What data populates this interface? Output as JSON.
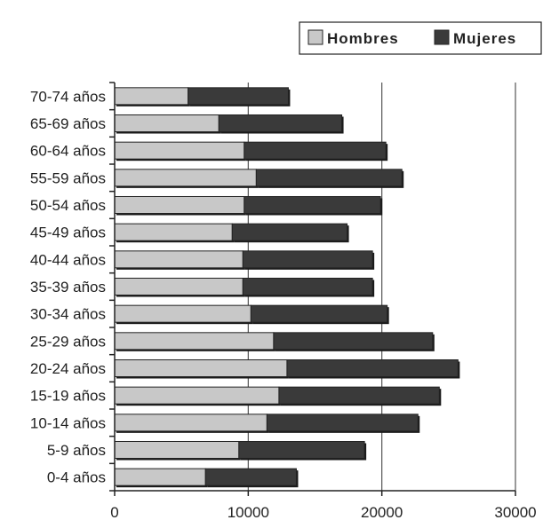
{
  "chart_data": {
    "type": "bar",
    "orientation": "horizontal",
    "stacked": true,
    "categories": [
      "0-4 años",
      "5-9 años",
      "10-14 años",
      "15-19 años",
      "20-24 años",
      "25-29 años",
      "30-34 años",
      "35-39 años",
      "40-44 años",
      "45-49 años",
      "50-54 años",
      "55-59 años",
      "60-64 años",
      "65-69 años",
      "70-74 años"
    ],
    "series": [
      {
        "name": "Hombres",
        "values": [
          6800,
          9300,
          11400,
          12300,
          12900,
          11900,
          10200,
          9600,
          9600,
          8800,
          9700,
          10600,
          9700,
          7800,
          5500
        ]
      },
      {
        "name": "Mujeres",
        "values": [
          6800,
          9400,
          11300,
          12000,
          12800,
          11900,
          10200,
          9700,
          9700,
          8600,
          10200,
          10900,
          10600,
          9200,
          7500
        ]
      }
    ],
    "xlim": [
      0,
      30000
    ],
    "xticks": [
      0,
      10000,
      20000,
      30000
    ],
    "title": "",
    "xlabel": "",
    "ylabel": "",
    "grid": "vertical",
    "legend_position": "top-right",
    "colors": {
      "Hombres": "#c8c8c8",
      "Mujeres": "#3a3a3a"
    }
  }
}
